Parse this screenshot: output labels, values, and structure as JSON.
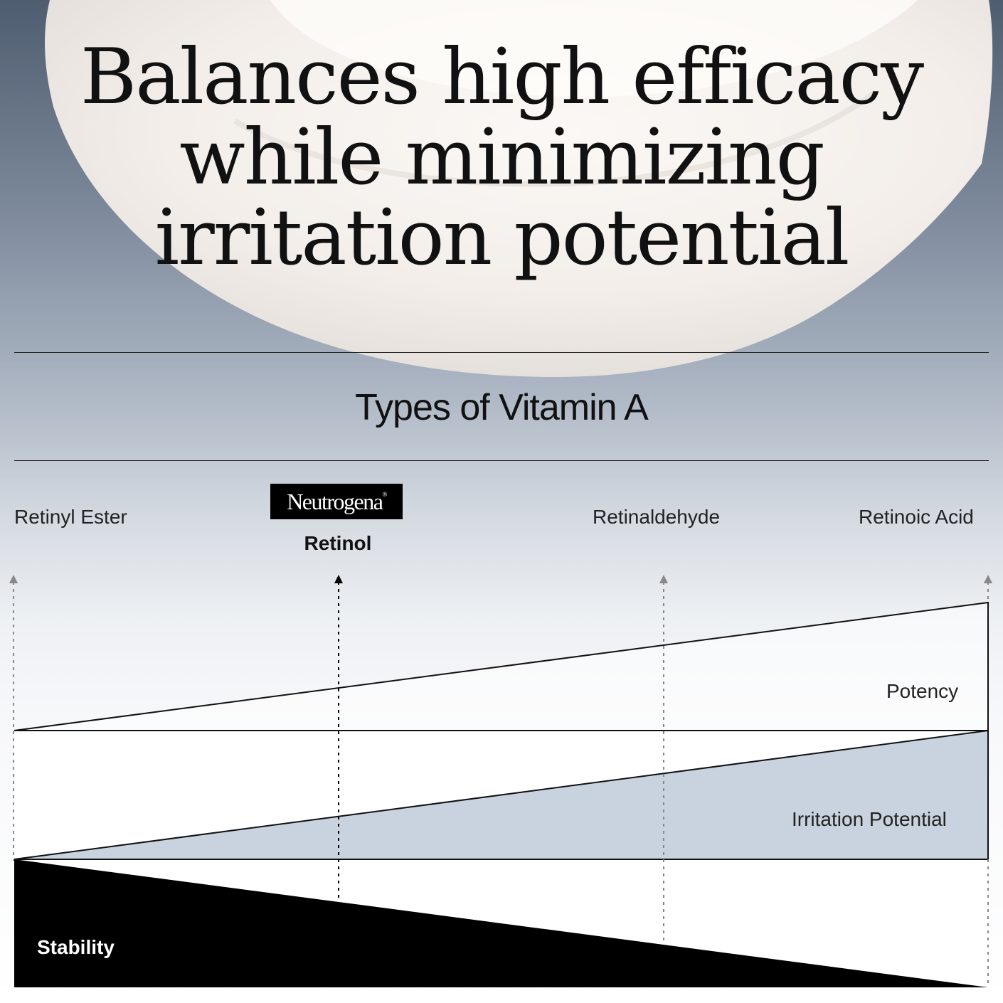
{
  "headline": {
    "line1": "Balances high efficacy",
    "line2": "while minimizing",
    "line3": "irritation potential"
  },
  "section_title": "Types of Vitamin A",
  "vitamin_types": [
    {
      "label": "Retinyl Ester"
    },
    {
      "label": "Retinol",
      "brand": "Neutrogena",
      "highlighted": true
    },
    {
      "label": "Retinaldehyde"
    },
    {
      "label": "Retinoic Acid"
    }
  ],
  "diagram": {
    "potency_label": "Potency",
    "irritation_label": "Irritation Potential",
    "stability_label": "Stability"
  },
  "colors": {
    "irritation_fill": "#c9d2df",
    "stability_fill": "#000000",
    "brand_box": "#000000"
  },
  "icons": [
    "arrow-up-icon"
  ]
}
